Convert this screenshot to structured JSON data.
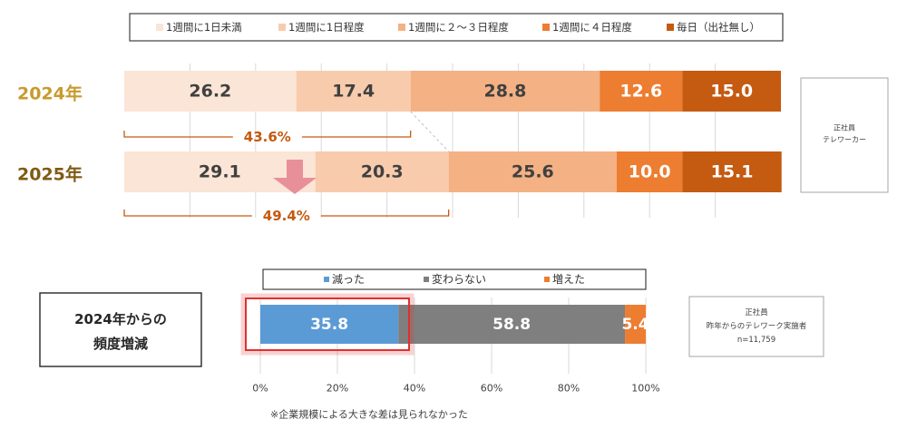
{
  "colors": {
    "c1": "#fbe5d6",
    "c2": "#f8cbad",
    "c3": "#f4b183",
    "c4": "#ed7d31",
    "c5": "#c55a11",
    "year1": "#c99a2e",
    "year2": "#7f5b12",
    "pct": "#c55a11",
    "blue": "#5b9bd5",
    "gray": "#7f7f7f",
    "orange": "#ed7d31",
    "highlight": "#e03030",
    "arrow": "#e8909a"
  },
  "chart_data": [
    {
      "type": "bar",
      "orientation": "horizontal",
      "stacked": true,
      "percent_stacked": true,
      "categories": [
        "2024年",
        "2025年"
      ],
      "series": [
        {
          "name": "1週間に1日未満",
          "values": [
            26.2,
            29.1
          ]
        },
        {
          "name": "1週間に1日程度",
          "values": [
            17.4,
            20.3
          ]
        },
        {
          "name": "1週間に２～３日程度",
          "values": [
            28.8,
            25.6
          ]
        },
        {
          "name": "1週間に４日程度",
          "values": [
            12.6,
            10.0
          ]
        },
        {
          "name": "毎日（出社無し）",
          "values": [
            15.0,
            15.1
          ]
        }
      ],
      "brackets": [
        "43.6%",
        "49.4%"
      ],
      "legend_position": "top",
      "note_box": [
        "正社員",
        "テレワーカー"
      ],
      "xlim": [
        0,
        100
      ],
      "grid": true
    },
    {
      "type": "bar",
      "orientation": "horizontal",
      "stacked": true,
      "percent_stacked": true,
      "title": "2024年からの頻度増減",
      "title_lines": [
        "2024年からの",
        "頻度増減"
      ],
      "categories": [
        ""
      ],
      "series": [
        {
          "name": "減った",
          "values": [
            35.8
          ]
        },
        {
          "name": "変わらない",
          "values": [
            58.8
          ]
        },
        {
          "name": "増えた",
          "values": [
            5.4
          ]
        }
      ],
      "xticks": [
        "0%",
        "20%",
        "40%",
        "60%",
        "80%",
        "100%"
      ],
      "xlim": [
        0,
        100
      ],
      "grid": true,
      "legend_position": "top",
      "note_box": [
        "正社員",
        "昨年からのテレワーク実施者",
        "n=11,759"
      ],
      "footnote": "※企業規模による大きな差は見られなかった"
    }
  ]
}
